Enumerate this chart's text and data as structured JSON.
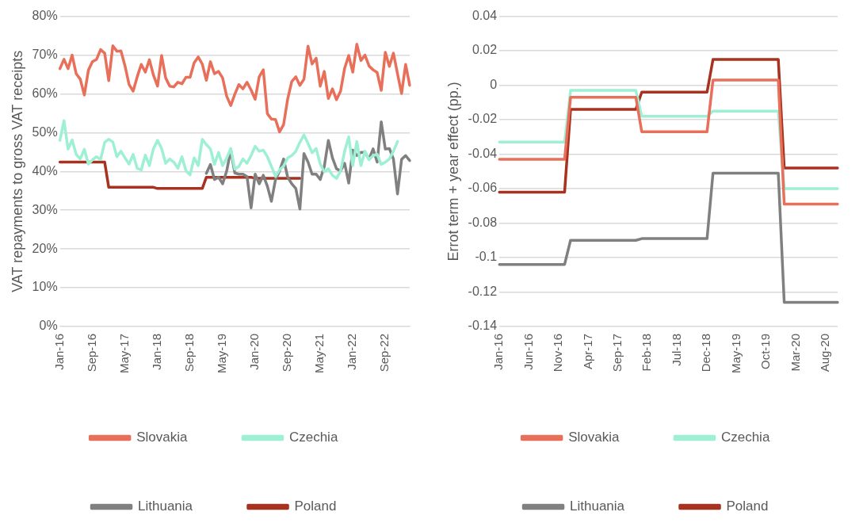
{
  "chart_data": [
    {
      "type": "line",
      "ylabel": "VAT repayments to gross VAT receipts",
      "categories": [
        "Jan-16",
        null,
        null,
        null,
        null,
        null,
        null,
        null,
        "Sep-16",
        null,
        null,
        null,
        null,
        null,
        null,
        null,
        "May-17",
        null,
        null,
        null,
        null,
        null,
        null,
        null,
        "Jan-18",
        null,
        null,
        null,
        null,
        null,
        null,
        null,
        "Sep-18",
        null,
        null,
        null,
        null,
        null,
        null,
        null,
        "May-19",
        null,
        null,
        null,
        null,
        null,
        null,
        null,
        "Jan-20",
        null,
        null,
        null,
        null,
        null,
        null,
        null,
        "Sep-20",
        null,
        null,
        null,
        null,
        null,
        null,
        null,
        "May-21",
        null,
        null,
        null,
        null,
        null,
        null,
        null,
        "Jan-22",
        null,
        null,
        null,
        null,
        null,
        null,
        null,
        "Sep-22",
        null,
        null,
        null,
        null,
        null,
        null
      ],
      "ylim": [
        0,
        80
      ],
      "yticks": [
        {
          "value": 0,
          "label": "0%"
        },
        {
          "value": 10,
          "label": "10%"
        },
        {
          "value": 20,
          "label": "20%"
        },
        {
          "value": 30,
          "label": "30%"
        },
        {
          "value": 40,
          "label": "40%"
        },
        {
          "value": 50,
          "label": "50%"
        },
        {
          "value": 60,
          "label": "60%"
        },
        {
          "value": 70,
          "label": "70%"
        },
        {
          "value": 80,
          "label": "80%"
        }
      ],
      "grid": "y",
      "legend": "bottom",
      "series": [
        {
          "name": "Slovakia",
          "color": "#e8705a",
          "values": [
            66.5,
            68.9,
            66.5,
            70,
            65.2,
            63.8,
            59.7,
            66.1,
            68.3,
            68.9,
            71.4,
            70.5,
            63.4,
            72.4,
            71,
            71.1,
            67.2,
            62.4,
            60.7,
            64.4,
            67.6,
            65.6,
            68.8,
            64.8,
            62,
            69.9,
            64.1,
            62,
            61.8,
            63,
            62.6,
            64.3,
            64.3,
            68,
            69.5,
            67.7,
            63.5,
            68.3,
            65.2,
            65.8,
            64.1,
            59.4,
            57,
            59.9,
            62.4,
            61.3,
            63,
            61,
            58.6,
            64.4,
            66.2,
            54.9,
            53.5,
            53.4,
            50.2,
            52.1,
            58.7,
            63.2,
            64.4,
            62.2,
            63.8,
            72.3,
            67.7,
            69.2,
            62,
            65.8,
            58.8,
            61.3,
            58.5,
            60.7,
            66.6,
            69.9,
            65.6,
            72.8,
            68.6,
            70,
            67.2,
            66.2,
            65.5,
            60.9,
            70.7,
            67.1,
            70.5,
            65.2,
            60.1,
            67.6,
            62.2
          ]
        },
        {
          "name": "Czechia",
          "color": "#9ef0d4",
          "values": [
            48,
            53.1,
            45.8,
            48.1,
            44.4,
            43.2,
            45.7,
            41.9,
            43,
            43.8,
            43.1,
            47.5,
            48.3,
            47.6,
            43.8,
            45.2,
            43.5,
            41.9,
            44.4,
            40.8,
            40.4,
            44.2,
            41.5,
            45.9,
            48,
            45.9,
            42.1,
            43.2,
            42.4,
            40.8,
            43.8,
            40.1,
            39.1,
            43.5,
            41.5,
            48.3,
            46.9,
            45.8,
            41.8,
            44.9,
            41.5,
            43.4,
            45.9,
            40.6,
            41.3,
            43.2,
            42.1,
            44.1,
            46.5,
            45.2,
            45.5,
            43.8,
            41.3,
            38.7,
            40.4,
            41.4,
            43.5,
            44.1,
            45.2,
            47.5,
            49.4,
            47.2,
            44.8,
            45.9,
            41.9,
            39.9,
            40.7,
            39,
            38.2,
            40.1,
            45.2,
            48.9,
            41.5,
            47.7,
            41.5,
            45.2,
            43,
            44.1,
            44.4,
            41.8,
            42.4,
            43.2,
            45.2,
            47.7,
            null,
            null,
            null
          ]
        },
        {
          "name": "Lithuania",
          "color": "#808080",
          "values": [
            null,
            null,
            null,
            null,
            null,
            null,
            null,
            null,
            null,
            null,
            null,
            null,
            null,
            null,
            null,
            null,
            null,
            null,
            null,
            null,
            null,
            null,
            null,
            null,
            null,
            null,
            null,
            null,
            null,
            null,
            null,
            null,
            null,
            null,
            null,
            null,
            39.5,
            41.8,
            37.9,
            38.5,
            36.8,
            40.1,
            45.5,
            39.6,
            39.3,
            39.3,
            38.7,
            30.6,
            39.3,
            36.8,
            39,
            36.2,
            32.3,
            37.9,
            40.1,
            43.2,
            38.5,
            36.8,
            35.6,
            30.3,
            44.6,
            42.4,
            39.3,
            39.3,
            37.9,
            41.3,
            48,
            43.5,
            40.7,
            40.1,
            42.1,
            37,
            45.5,
            44.1,
            44.9,
            44.9,
            43.2,
            45.8,
            42.4,
            52.8,
            45.8,
            45.9,
            43.2,
            34.2,
            43.1,
            44.1,
            42.8
          ]
        },
        {
          "name": "Poland",
          "color": "#a83220",
          "values": [
            42.4,
            42.4,
            42.4,
            42.4,
            42.4,
            42.4,
            42.4,
            42.4,
            42.4,
            42.4,
            42.4,
            42.4,
            35.9,
            35.9,
            35.9,
            35.9,
            35.9,
            35.9,
            35.9,
            35.9,
            35.9,
            35.9,
            35.9,
            35.9,
            35.6,
            35.6,
            35.6,
            35.6,
            35.6,
            35.6,
            35.6,
            35.6,
            35.6,
            35.6,
            35.6,
            35.6,
            38.5,
            38.5,
            38.5,
            38.5,
            38.5,
            38.5,
            38.5,
            38.5,
            38.5,
            38.5,
            38.5,
            38.5,
            38.2,
            38.2,
            38.2,
            38.2,
            38.2,
            38.2,
            38.2,
            38.2,
            38.2,
            38.2,
            38.2,
            38.2,
            null,
            null,
            null,
            null,
            null,
            null,
            null,
            null,
            null,
            null,
            null,
            null,
            null,
            null,
            null,
            null,
            null,
            null,
            null,
            null,
            null,
            null,
            null,
            null,
            null,
            null,
            null
          ]
        }
      ]
    },
    {
      "type": "line",
      "ylabel": "Errot term + year effect (pp.)",
      "categories": [
        "Jan-16",
        null,
        null,
        null,
        null,
        "Jun-16",
        null,
        null,
        null,
        null,
        "Nov-16",
        null,
        null,
        null,
        null,
        "Apr-17",
        null,
        null,
        null,
        null,
        "Sep-17",
        null,
        null,
        null,
        null,
        "Feb-18",
        null,
        null,
        null,
        null,
        "Jul-18",
        null,
        null,
        null,
        null,
        "Dec-18",
        null,
        null,
        null,
        null,
        "May-19",
        null,
        null,
        null,
        null,
        "Oct-19",
        null,
        null,
        null,
        null,
        "Mar-20",
        null,
        null,
        null,
        null,
        "Aug-20",
        null,
        null
      ],
      "ylim": [
        -0.14,
        0.04
      ],
      "yticks": [
        -0.14,
        -0.12,
        -0.1,
        -0.08,
        -0.06,
        -0.04,
        -0.02,
        0,
        0.02,
        0.04
      ],
      "grid": "y",
      "legend": "bottom",
      "series": [
        {
          "name": "Slovakia",
          "color": "#e8705a",
          "values": [
            -0.043,
            -0.043,
            -0.043,
            -0.043,
            -0.043,
            -0.043,
            -0.043,
            -0.043,
            -0.043,
            -0.043,
            -0.043,
            -0.043,
            -0.007,
            -0.007,
            -0.007,
            -0.007,
            -0.007,
            -0.007,
            -0.007,
            -0.007,
            -0.007,
            -0.007,
            -0.007,
            -0.007,
            -0.027,
            -0.027,
            -0.027,
            -0.027,
            -0.027,
            -0.027,
            -0.027,
            -0.027,
            -0.027,
            -0.027,
            -0.027,
            -0.027,
            0.003,
            0.003,
            0.003,
            0.003,
            0.003,
            0.003,
            0.003,
            0.003,
            0.003,
            0.003,
            0.003,
            0.003,
            -0.069,
            -0.069,
            -0.069,
            -0.069,
            -0.069,
            -0.069,
            -0.069,
            -0.069,
            -0.069,
            -0.069
          ]
        },
        {
          "name": "Czechia",
          "color": "#9ef0d4",
          "values": [
            -0.033,
            -0.033,
            -0.033,
            -0.033,
            -0.033,
            -0.033,
            -0.033,
            -0.033,
            -0.033,
            -0.033,
            -0.033,
            -0.033,
            -0.003,
            -0.003,
            -0.003,
            -0.003,
            -0.003,
            -0.003,
            -0.003,
            -0.003,
            -0.003,
            -0.003,
            -0.003,
            -0.003,
            -0.018,
            -0.018,
            -0.018,
            -0.018,
            -0.018,
            -0.018,
            -0.018,
            -0.018,
            -0.018,
            -0.018,
            -0.018,
            -0.018,
            -0.015,
            -0.015,
            -0.015,
            -0.015,
            -0.015,
            -0.015,
            -0.015,
            -0.015,
            -0.015,
            -0.015,
            -0.015,
            -0.015,
            -0.06,
            -0.06,
            -0.06,
            -0.06,
            -0.06,
            -0.06,
            -0.06,
            -0.06,
            -0.06,
            -0.06
          ]
        },
        {
          "name": "Lithuania",
          "color": "#808080",
          "values": [
            -0.104,
            -0.104,
            -0.104,
            -0.104,
            -0.104,
            -0.104,
            -0.104,
            -0.104,
            -0.104,
            -0.104,
            -0.104,
            -0.104,
            -0.09,
            -0.09,
            -0.09,
            -0.09,
            -0.09,
            -0.09,
            -0.09,
            -0.09,
            -0.09,
            -0.09,
            -0.09,
            -0.09,
            -0.089,
            -0.089,
            -0.089,
            -0.089,
            -0.089,
            -0.089,
            -0.089,
            -0.089,
            -0.089,
            -0.089,
            -0.089,
            -0.089,
            -0.051,
            -0.051,
            -0.051,
            -0.051,
            -0.051,
            -0.051,
            -0.051,
            -0.051,
            -0.051,
            -0.051,
            -0.051,
            -0.051,
            -0.126,
            -0.126,
            -0.126,
            -0.126,
            -0.126,
            -0.126,
            -0.126,
            -0.126,
            -0.126,
            -0.126
          ]
        },
        {
          "name": "Poland",
          "color": "#a83220",
          "values": [
            -0.062,
            -0.062,
            -0.062,
            -0.062,
            -0.062,
            -0.062,
            -0.062,
            -0.062,
            -0.062,
            -0.062,
            -0.062,
            -0.062,
            -0.014,
            -0.014,
            -0.014,
            -0.014,
            -0.014,
            -0.014,
            -0.014,
            -0.014,
            -0.014,
            -0.014,
            -0.014,
            -0.014,
            -0.004,
            -0.004,
            -0.004,
            -0.004,
            -0.004,
            -0.004,
            -0.004,
            -0.004,
            -0.004,
            -0.004,
            -0.004,
            -0.004,
            0.015,
            0.015,
            0.015,
            0.015,
            0.015,
            0.015,
            0.015,
            0.015,
            0.015,
            0.015,
            0.015,
            0.015,
            -0.048,
            -0.048,
            -0.048,
            -0.048,
            -0.048,
            -0.048,
            -0.048,
            -0.048,
            -0.048,
            -0.048
          ]
        }
      ]
    }
  ]
}
